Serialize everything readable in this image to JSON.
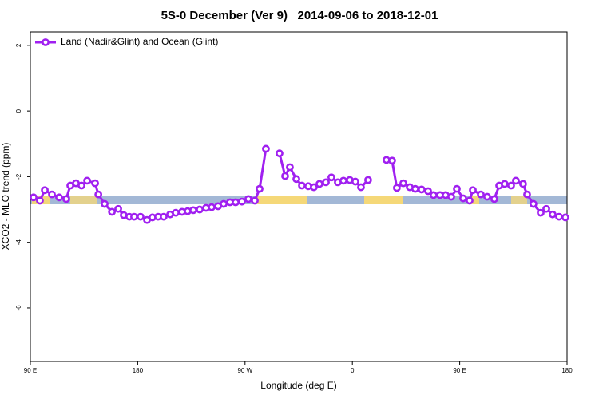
{
  "chart_data": {
    "type": "line",
    "title": "5S-0 December (Ver 9)   2014-09-06 to 2018-12-01",
    "x_label": "Longitude (deg E)",
    "y_label": "XCO2 - MLO trend (ppm)",
    "legend_position": "top-left",
    "xlim": [
      90,
      540
    ],
    "ylim": [
      -7.63,
      2.41
    ],
    "xticks": [
      {
        "value": 90,
        "label": "90 E"
      },
      {
        "value": 180,
        "label": "180"
      },
      {
        "value": 270,
        "label": "90 W"
      },
      {
        "value": 360,
        "label": "0"
      },
      {
        "value": 450,
        "label": "90 E"
      },
      {
        "value": 540,
        "label": "180"
      }
    ],
    "yticks": [
      2,
      0,
      -2,
      -4,
      -6
    ],
    "series": [
      {
        "name": "Land (Nadir&Glint) and Ocean (Glint)",
        "color": "#a020f0",
        "x": [
          92.7,
          98.0,
          102.1,
          108.1,
          114.1,
          120.1,
          123.5,
          128.2,
          132.9,
          137.6,
          144.3,
          147.0,
          152.3,
          158.4,
          163.7,
          168.3,
          173.0,
          177.0,
          182.4,
          187.8,
          192.4,
          197.1,
          201.8,
          207.2,
          211.9,
          217.2,
          221.9,
          226.6,
          232.0,
          237.3,
          242.0,
          247.4,
          252.1,
          257.4,
          262.1,
          267.4,
          272.8,
          278.2,
          282.2,
          287.5,
          292.0,
          298.9,
          303.6,
          307.6,
          313.0,
          317.7,
          323.0,
          327.7,
          332.4,
          337.8,
          342.4,
          347.8,
          352.5,
          357.8,
          362.5,
          367.2,
          373.2,
          380.0,
          388.6,
          393.3,
          397.3,
          402.7,
          408.1,
          412.7,
          418.1,
          423.5,
          428.1,
          433.5,
          438.2,
          442.9,
          447.6,
          452.9,
          458.3,
          461.0,
          467.7,
          473.0,
          479.0,
          483.1,
          487.7,
          493.1,
          497.1,
          503.1,
          506.5,
          511.8,
          517.9,
          522.6,
          527.9,
          533.3,
          538.6
        ],
        "values": [
          -2.63,
          -2.73,
          -2.41,
          -2.54,
          -2.63,
          -2.68,
          -2.27,
          -2.2,
          -2.27,
          -2.12,
          -2.2,
          -2.54,
          -2.83,
          -3.07,
          -2.98,
          -3.17,
          -3.22,
          -3.22,
          -3.22,
          -3.32,
          -3.24,
          -3.22,
          -3.22,
          -3.15,
          -3.1,
          -3.07,
          -3.05,
          -3.02,
          -3.0,
          -2.95,
          -2.93,
          -2.9,
          -2.83,
          -2.78,
          -2.78,
          -2.76,
          -2.68,
          -2.73,
          -2.37,
          -1.15,
          null,
          -1.29,
          -1.98,
          -1.71,
          -2.07,
          -2.27,
          -2.29,
          -2.32,
          -2.22,
          -2.17,
          -2.02,
          -2.17,
          -2.12,
          -2.1,
          -2.15,
          -2.32,
          -2.1,
          null,
          -1.49,
          -1.51,
          -2.34,
          -2.2,
          -2.32,
          -2.37,
          -2.39,
          -2.44,
          -2.56,
          -2.56,
          -2.56,
          -2.61,
          -2.37,
          -2.66,
          -2.73,
          -2.41,
          -2.54,
          -2.61,
          -2.68,
          -2.27,
          -2.22,
          -2.27,
          -2.12,
          -2.22,
          -2.54,
          -2.83,
          -3.1,
          -2.98,
          -3.15,
          -3.22,
          -3.24
        ]
      }
    ]
  }
}
